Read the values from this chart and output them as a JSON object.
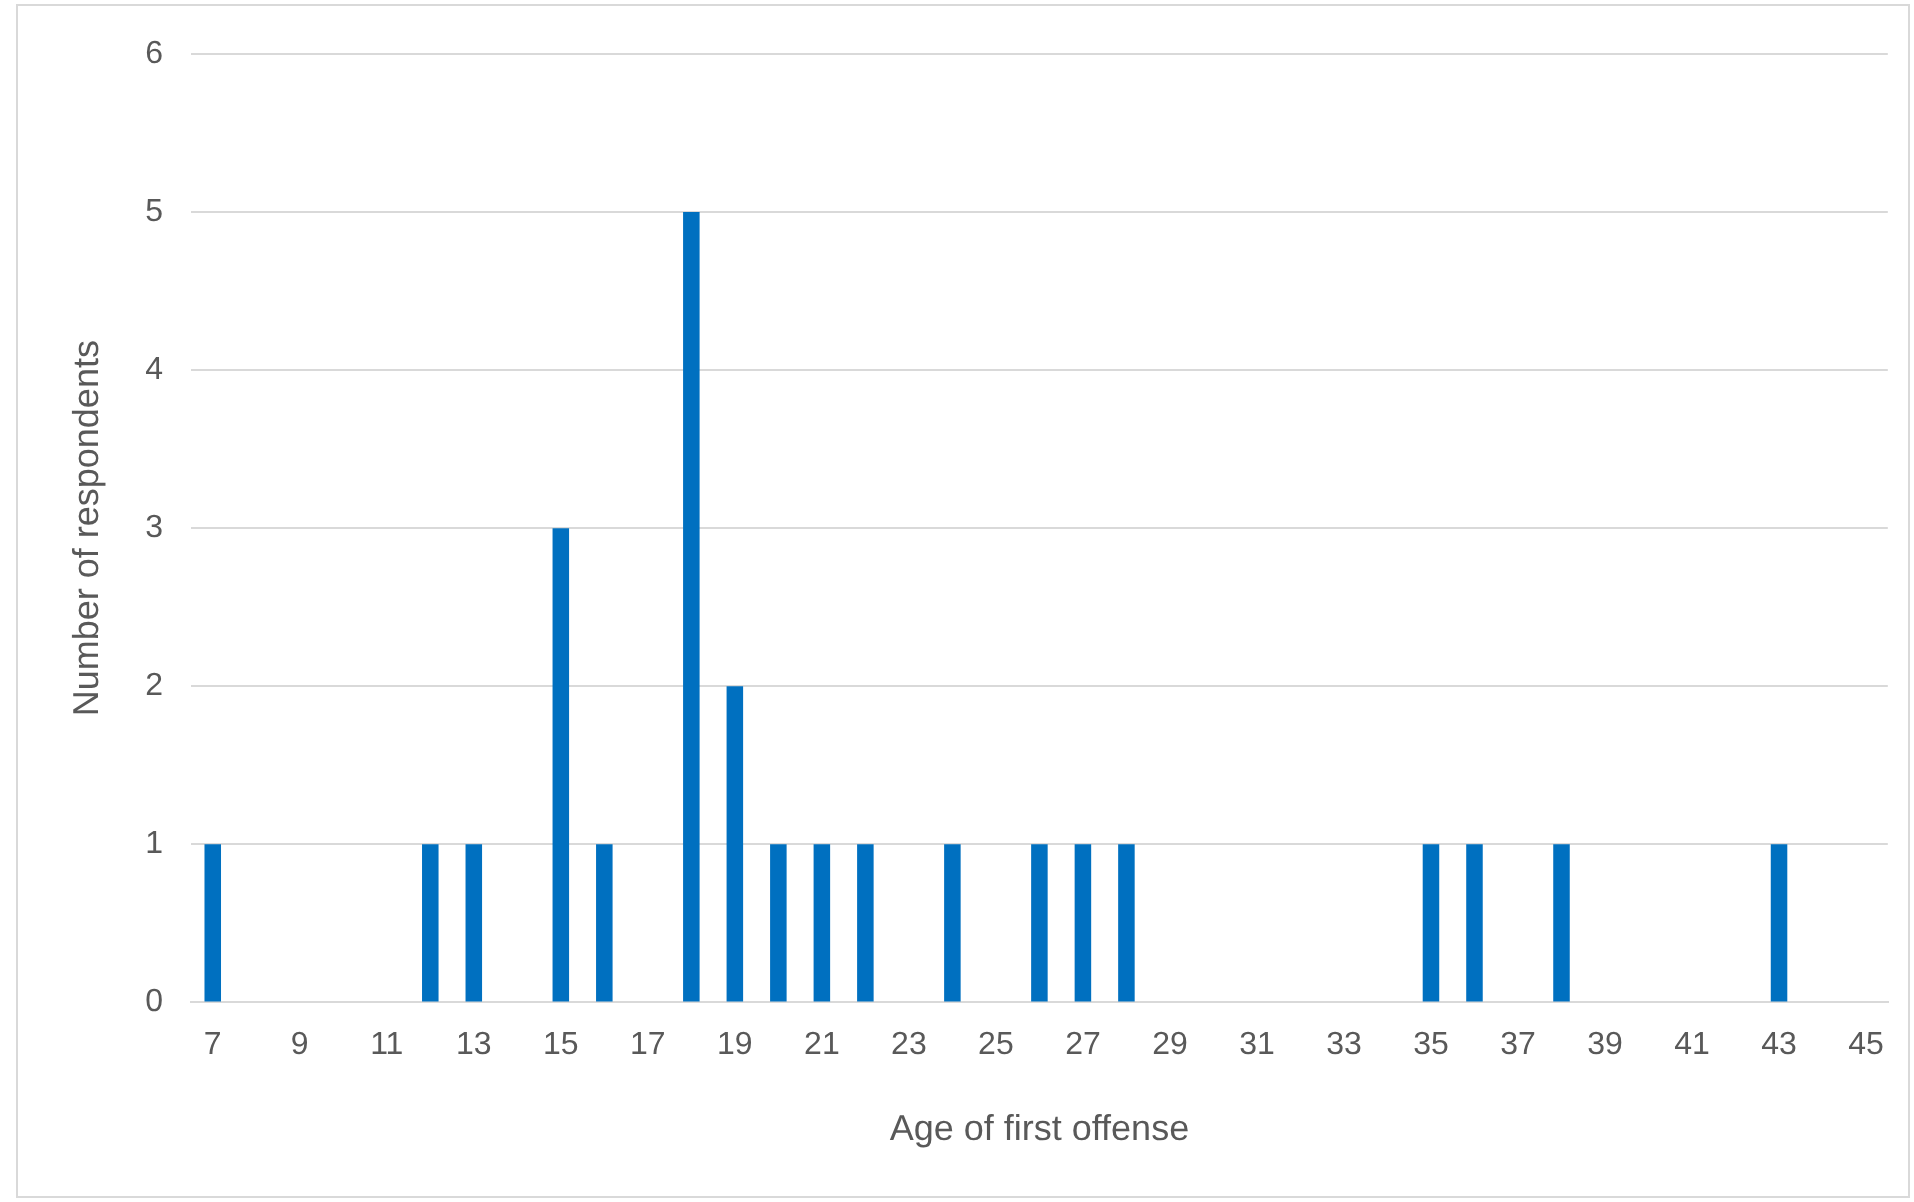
{
  "chart_data": {
    "type": "bar",
    "xlabel": "Age of first offense",
    "ylabel": "Number of respondents",
    "categories": [
      "7",
      null,
      "9",
      null,
      "11",
      null,
      "13",
      null,
      "15",
      null,
      "17",
      null,
      "19",
      null,
      "21",
      null,
      "23",
      null,
      "25",
      null,
      "27",
      null,
      "29",
      null,
      "31",
      null,
      "33",
      null,
      "35",
      null,
      "37",
      null,
      "39",
      null,
      "41",
      null,
      "43",
      null,
      "45"
    ],
    "values": [
      1,
      0,
      0,
      0,
      0,
      1,
      1,
      0,
      3,
      1,
      0,
      5,
      2,
      1,
      1,
      1,
      0,
      1,
      0,
      1,
      1,
      1,
      0,
      0,
      0,
      0,
      0,
      0,
      1,
      1,
      0,
      1,
      0,
      0,
      0,
      0,
      1,
      0,
      0
    ],
    "color": "#0070c0",
    "ylim": [
      0,
      6
    ],
    "yticks": [
      0,
      1,
      2,
      3,
      4,
      5,
      6
    ],
    "grid": "y",
    "legend": false
  }
}
